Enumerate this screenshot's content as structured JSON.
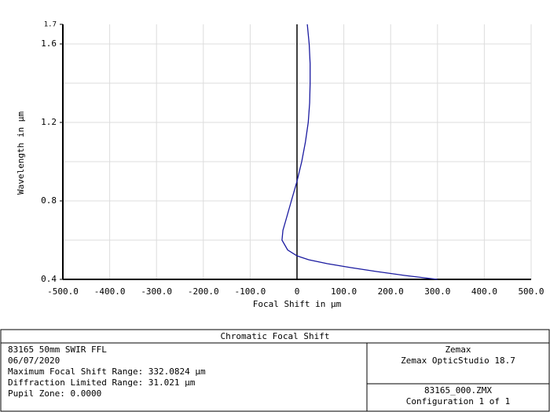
{
  "chart_data": {
    "type": "line",
    "xlabel": "Focal Shift in µm",
    "ylabel": "Wavelength in µm",
    "xlim": [
      -500,
      500
    ],
    "xticks": [
      {
        "value": -500,
        "label": "-500.0"
      },
      {
        "value": -400,
        "label": "-400.0"
      },
      {
        "value": -300,
        "label": "-300.0"
      },
      {
        "value": -200,
        "label": "-200.0"
      },
      {
        "value": -100,
        "label": "-100.0"
      },
      {
        "value": 0,
        "label": "0"
      },
      {
        "value": 100,
        "label": "100.0"
      },
      {
        "value": 200,
        "label": "200.0"
      },
      {
        "value": 300,
        "label": "300.0"
      },
      {
        "value": 400,
        "label": "400.0"
      },
      {
        "value": 500,
        "label": "500.0"
      }
    ],
    "ylim": [
      0.4,
      1.7
    ],
    "yticks": [
      0.4,
      0.8,
      1.2,
      1.6,
      1.7
    ],
    "ygrid": [
      0.4,
      0.6,
      0.8,
      1.0,
      1.2,
      1.4,
      1.6
    ],
    "grid": true,
    "wavelengths": [
      0.4,
      0.42,
      0.44,
      0.46,
      0.48,
      0.5,
      0.52,
      0.55,
      0.6,
      0.65,
      0.7,
      0.8,
      0.9,
      1.0,
      1.1,
      1.2,
      1.3,
      1.4,
      1.5,
      1.6,
      1.7
    ],
    "series": [
      {
        "color": "#1a1aa0",
        "values": [
          300,
          230,
          170,
          115,
          65,
          25,
          0,
          -20,
          -32,
          -30,
          -24,
          -12,
          0,
          10,
          18,
          24,
          27,
          28,
          28,
          26,
          22
        ]
      }
    ]
  },
  "footer": {
    "title": "Chromatic Focal Shift",
    "left": [
      "83165 50mm SWIR FFL",
      "06/07/2020",
      "Maximum Focal Shift Range: 332.0824 µm",
      "Diffraction Limited Range: 31.021 µm",
      "Pupil Zone: 0.0000"
    ],
    "right_top": [
      "Zemax",
      "Zemax OpticStudio 18.7"
    ],
    "right_bottom": [
      "83165_000.ZMX",
      "Configuration 1 of 1"
    ]
  }
}
